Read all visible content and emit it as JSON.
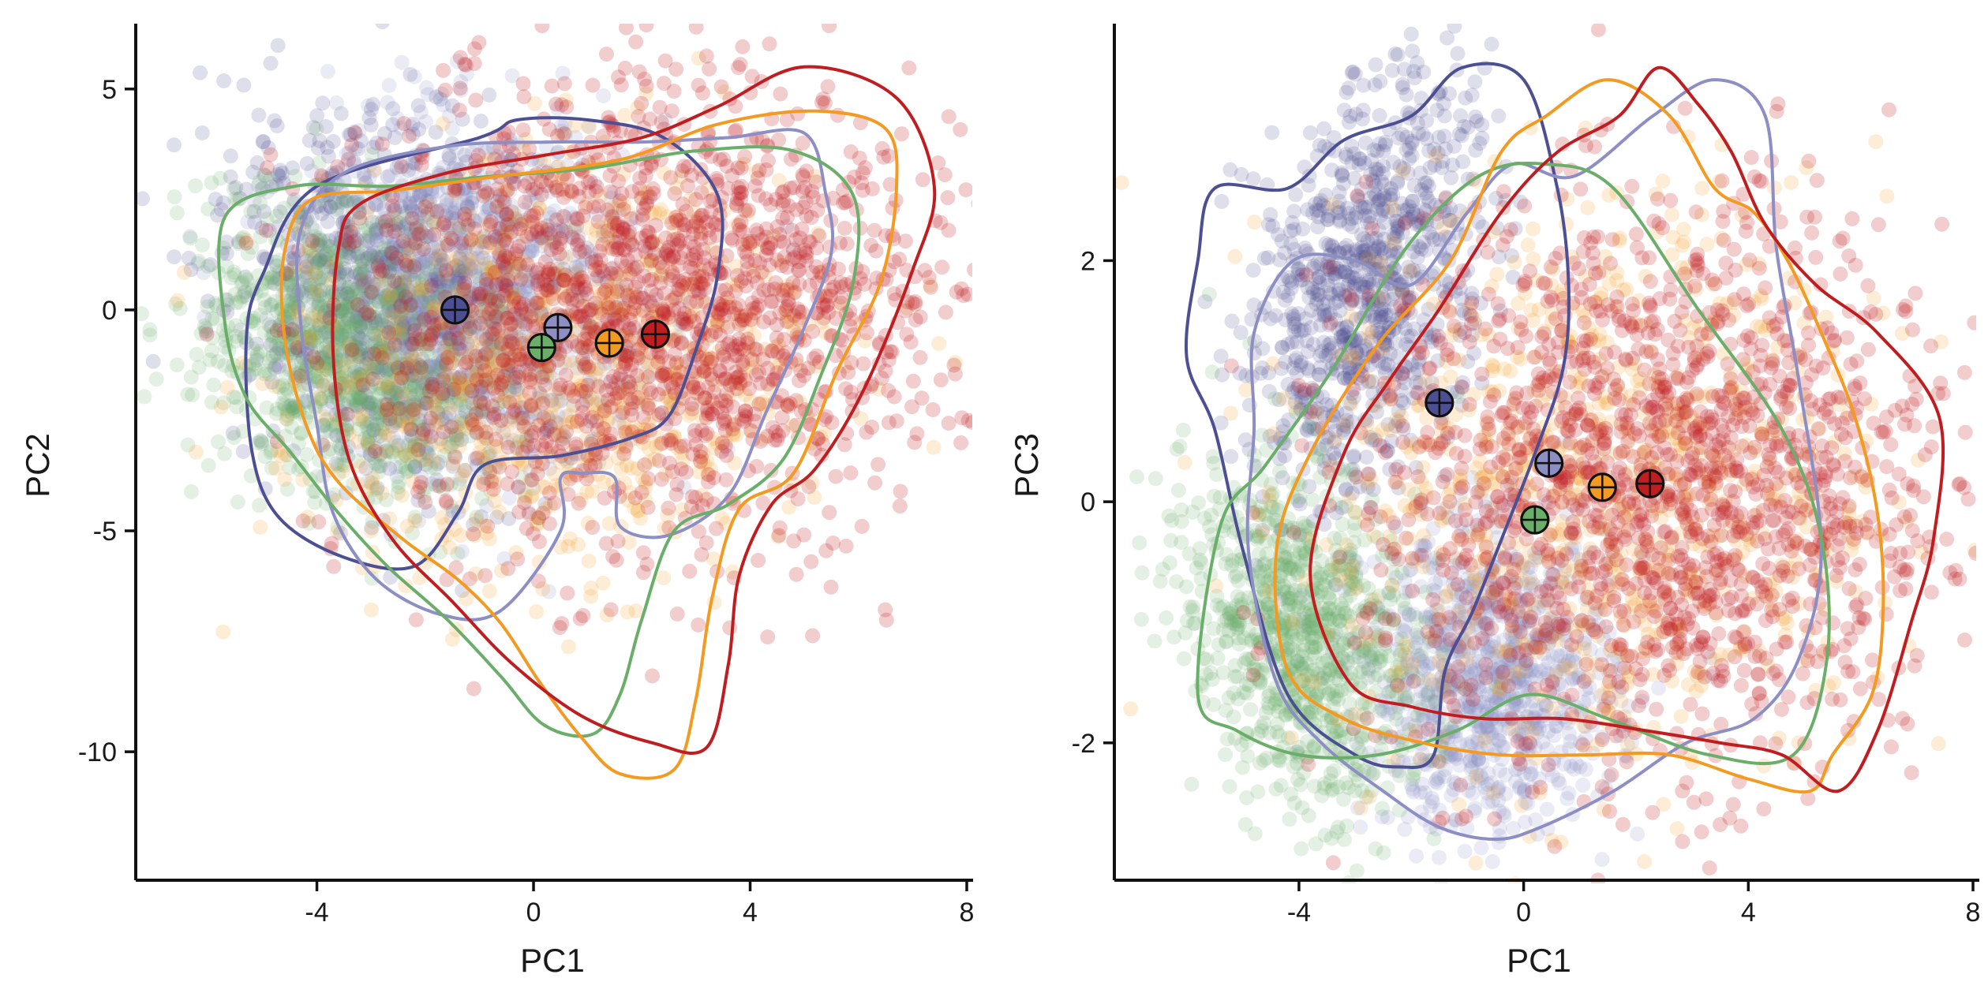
{
  "colors": {
    "navy": "#4c4f92",
    "lavender": "#8c8ec4",
    "green": "#6aae6a",
    "orange": "#f39a22",
    "red": "#c01d20",
    "axis": "#111111"
  },
  "chart_data": [
    {
      "type": "scatter",
      "title": "",
      "xlabel": "PC1",
      "ylabel": "PC2",
      "xlim": [
        -6.5,
        8.0
      ],
      "ylim": [
        -12.8,
        6.3
      ],
      "xticks": [
        -4,
        0,
        4,
        8
      ],
      "xtick_labels": [
        "-4",
        "0",
        "4",
        "8"
      ],
      "yticks": [
        -10,
        -5,
        0,
        5
      ],
      "ytick_labels": [
        "-10",
        "-5",
        "0",
        "5"
      ],
      "grid": false,
      "legend": "none",
      "series": [
        {
          "color_key": "navy",
          "centroid": [
            -1.45,
            0.0
          ],
          "spread": {
            "cx": -2.6,
            "cy": 0.3,
            "rx": 2.6,
            "ry": 3.7,
            "rot": 15
          },
          "contour": [
            [
              -1.0,
              3.9
            ],
            [
              -0.3,
              4.3
            ],
            [
              1.0,
              4.3
            ],
            [
              2.4,
              3.9
            ],
            [
              3.4,
              2.6
            ],
            [
              3.4,
              0.8
            ],
            [
              3.0,
              -0.9
            ],
            [
              2.5,
              -2.4
            ],
            [
              1.8,
              -2.9
            ],
            [
              0.5,
              -3.3
            ],
            [
              -0.9,
              -3.5
            ],
            [
              -1.4,
              -4.6
            ],
            [
              -2.2,
              -5.8
            ],
            [
              -3.5,
              -5.6
            ],
            [
              -4.7,
              -4.7
            ],
            [
              -5.2,
              -3.2
            ],
            [
              -5.3,
              -0.6
            ],
            [
              -5.0,
              0.8
            ],
            [
              -4.0,
              2.8
            ]
          ]
        },
        {
          "color_key": "lavender",
          "centroid": [
            0.45,
            -0.4
          ],
          "spread": {
            "cx": -1.0,
            "cy": 0.2,
            "rx": 3.0,
            "ry": 3.6,
            "rot": 10
          },
          "contour": [
            [
              -3.5,
              3.1
            ],
            [
              -1.6,
              3.7
            ],
            [
              0.3,
              3.8
            ],
            [
              2.0,
              3.8
            ],
            [
              3.6,
              3.9
            ],
            [
              5.0,
              4.0
            ],
            [
              5.4,
              2.6
            ],
            [
              5.5,
              1.3
            ],
            [
              5.0,
              -0.4
            ],
            [
              4.3,
              -2.3
            ],
            [
              3.6,
              -4.2
            ],
            [
              2.5,
              -5.1
            ],
            [
              1.6,
              -4.9
            ],
            [
              1.5,
              -3.8
            ],
            [
              0.9,
              -3.7
            ],
            [
              0.5,
              -3.8
            ],
            [
              0.5,
              -5.0
            ],
            [
              -0.6,
              -6.8
            ],
            [
              -1.7,
              -6.9
            ],
            [
              -2.9,
              -6.1
            ],
            [
              -3.7,
              -4.6
            ],
            [
              -4.0,
              -2.6
            ],
            [
              -4.3,
              -0.3
            ],
            [
              -4.3,
              1.8
            ]
          ]
        },
        {
          "color_key": "green",
          "centroid": [
            0.15,
            -0.85
          ],
          "spread": {
            "cx": -3.6,
            "cy": -1.0,
            "rx": 2.2,
            "ry": 3.2,
            "rot": 25
          },
          "contour": [
            [
              -5.7,
              2.1
            ],
            [
              -4.4,
              2.8
            ],
            [
              -2.7,
              2.8
            ],
            [
              -1.0,
              3.0
            ],
            [
              1.0,
              3.2
            ],
            [
              3.0,
              3.6
            ],
            [
              4.8,
              3.6
            ],
            [
              5.9,
              2.6
            ],
            [
              5.9,
              0.6
            ],
            [
              5.3,
              -1.5
            ],
            [
              4.6,
              -3.4
            ],
            [
              3.6,
              -4.4
            ],
            [
              2.6,
              -5.0
            ],
            [
              2.0,
              -7.0
            ],
            [
              1.6,
              -8.7
            ],
            [
              1.1,
              -9.6
            ],
            [
              0.2,
              -9.4
            ],
            [
              -0.6,
              -8.3
            ],
            [
              -1.6,
              -7.0
            ],
            [
              -2.7,
              -5.8
            ],
            [
              -3.6,
              -4.6
            ],
            [
              -4.5,
              -3.2
            ],
            [
              -5.3,
              -2.0
            ],
            [
              -5.7,
              -0.3
            ]
          ]
        },
        {
          "color_key": "orange",
          "centroid": [
            1.4,
            -0.75
          ],
          "spread": {
            "cx": 0.6,
            "cy": -1.2,
            "rx": 4.4,
            "ry": 4.3,
            "rot": 20
          },
          "contour": [
            [
              -4.6,
              1.3
            ],
            [
              -4.1,
              2.5
            ],
            [
              -2.6,
              2.7
            ],
            [
              -0.8,
              3.0
            ],
            [
              1.6,
              3.4
            ],
            [
              3.4,
              4.2
            ],
            [
              5.2,
              4.5
            ],
            [
              6.5,
              4.1
            ],
            [
              6.7,
              2.7
            ],
            [
              6.4,
              0.6
            ],
            [
              5.6,
              -1.4
            ],
            [
              4.8,
              -3.7
            ],
            [
              3.8,
              -4.5
            ],
            [
              3.3,
              -6.5
            ],
            [
              3.0,
              -8.8
            ],
            [
              2.6,
              -10.4
            ],
            [
              1.6,
              -10.5
            ],
            [
              0.9,
              -9.7
            ],
            [
              0.1,
              -8.4
            ],
            [
              -0.6,
              -7.1
            ],
            [
              -1.4,
              -6.1
            ],
            [
              -2.4,
              -5.2
            ],
            [
              -3.6,
              -3.9
            ],
            [
              -4.2,
              -2.6
            ],
            [
              -4.6,
              -0.6
            ]
          ]
        },
        {
          "color_key": "red",
          "centroid": [
            2.25,
            -0.55
          ],
          "spread": {
            "cx": 2.2,
            "cy": 0.0,
            "rx": 4.9,
            "ry": 4.7,
            "rot": 20
          },
          "contour": [
            [
              -3.6,
              1.4
            ],
            [
              -3.2,
              2.4
            ],
            [
              -1.6,
              3.1
            ],
            [
              0.2,
              3.5
            ],
            [
              2.0,
              3.9
            ],
            [
              3.4,
              4.6
            ],
            [
              5.0,
              5.5
            ],
            [
              6.7,
              4.8
            ],
            [
              7.4,
              2.8
            ],
            [
              7.0,
              0.9
            ],
            [
              6.1,
              -1.8
            ],
            [
              5.2,
              -3.6
            ],
            [
              4.4,
              -4.4
            ],
            [
              3.8,
              -6.0
            ],
            [
              3.6,
              -8.0
            ],
            [
              3.2,
              -9.9
            ],
            [
              2.2,
              -9.8
            ],
            [
              0.9,
              -9.2
            ],
            [
              -0.4,
              -8.0
            ],
            [
              -1.5,
              -6.6
            ],
            [
              -2.6,
              -5.2
            ],
            [
              -3.4,
              -3.4
            ],
            [
              -3.7,
              -1.0
            ]
          ]
        }
      ]
    },
    {
      "type": "scatter",
      "title": "",
      "xlabel": "PC1",
      "ylabel": "PC3",
      "xlim": [
        -6.5,
        8.0
      ],
      "ylim": [
        -3.1,
        3.9
      ],
      "xticks": [
        -4,
        0,
        4,
        8
      ],
      "xtick_labels": [
        "-4",
        "0",
        "4",
        "8"
      ],
      "yticks": [
        -2,
        0,
        2
      ],
      "ytick_labels": [
        "-2",
        "0",
        "2"
      ],
      "grid": false,
      "legend": "none",
      "series": [
        {
          "color_key": "navy",
          "centroid": [
            -1.5,
            0.82
          ],
          "spread": {
            "cx": -2.8,
            "cy": 1.8,
            "rx": 2.1,
            "ry": 1.3,
            "rot": 35
          },
          "contour": [
            [
              -5.5,
              2.6
            ],
            [
              -4.2,
              2.6
            ],
            [
              -3.2,
              3.0
            ],
            [
              -2.0,
              3.2
            ],
            [
              -1.1,
              3.6
            ],
            [
              0.0,
              3.5
            ],
            [
              0.6,
              2.6
            ],
            [
              0.8,
              1.8
            ],
            [
              0.7,
              1.1
            ],
            [
              0.2,
              0.4
            ],
            [
              -0.3,
              -0.2
            ],
            [
              -0.9,
              -0.9
            ],
            [
              -1.4,
              -1.4
            ],
            [
              -1.6,
              -2.1
            ],
            [
              -2.2,
              -2.2
            ],
            [
              -3.0,
              -2.1
            ],
            [
              -4.2,
              -1.6
            ],
            [
              -5.0,
              -0.4
            ],
            [
              -5.5,
              0.6
            ],
            [
              -6.0,
              1.2
            ],
            [
              -5.8,
              2.0
            ]
          ]
        },
        {
          "color_key": "lavender",
          "centroid": [
            0.45,
            0.32
          ],
          "spread": {
            "cx": -0.6,
            "cy": -1.5,
            "rx": 2.0,
            "ry": 1.1,
            "rot": 0
          },
          "contour": [
            [
              -4.8,
              1.4
            ],
            [
              -4.1,
              2.0
            ],
            [
              -3.0,
              2.0
            ],
            [
              -2.0,
              1.8
            ],
            [
              -1.0,
              2.4
            ],
            [
              -0.2,
              2.8
            ],
            [
              0.9,
              2.7
            ],
            [
              2.3,
              3.2
            ],
            [
              3.4,
              3.5
            ],
            [
              4.3,
              3.2
            ],
            [
              4.5,
              2.1
            ],
            [
              4.9,
              1.0
            ],
            [
              5.3,
              -0.4
            ],
            [
              4.9,
              -1.3
            ],
            [
              4.1,
              -1.8
            ],
            [
              2.9,
              -2.0
            ],
            [
              1.6,
              -2.4
            ],
            [
              0.3,
              -2.7
            ],
            [
              -0.5,
              -2.8
            ],
            [
              -1.5,
              -2.7
            ],
            [
              -2.5,
              -2.4
            ],
            [
              -3.6,
              -2.0
            ],
            [
              -4.4,
              -1.5
            ],
            [
              -4.9,
              -0.4
            ],
            [
              -4.8,
              0.6
            ]
          ]
        },
        {
          "color_key": "green",
          "centroid": [
            0.2,
            -0.15
          ],
          "spread": {
            "cx": -4.0,
            "cy": -1.1,
            "rx": 1.9,
            "ry": 1.2,
            "rot": -20
          },
          "contour": [
            [
              -5.4,
              -0.2
            ],
            [
              -4.6,
              0.3
            ],
            [
              -3.4,
              1.1
            ],
            [
              -2.1,
              2.1
            ],
            [
              -0.8,
              2.7
            ],
            [
              0.4,
              2.8
            ],
            [
              1.6,
              2.6
            ],
            [
              3.1,
              1.6
            ],
            [
              4.6,
              0.6
            ],
            [
              5.3,
              -0.3
            ],
            [
              5.4,
              -1.3
            ],
            [
              4.8,
              -2.1
            ],
            [
              3.3,
              -2.1
            ],
            [
              1.5,
              -1.8
            ],
            [
              0.1,
              -1.6
            ],
            [
              -1.2,
              -1.9
            ],
            [
              -2.6,
              -2.1
            ],
            [
              -4.0,
              -2.1
            ],
            [
              -5.1,
              -1.9
            ],
            [
              -5.8,
              -1.6
            ]
          ]
        },
        {
          "color_key": "orange",
          "centroid": [
            1.4,
            0.12
          ],
          "spread": {
            "cx": 1.4,
            "cy": 0.1,
            "rx": 4.6,
            "ry": 2.2,
            "rot": 0
          },
          "contour": [
            [
              -3.8,
              0.4
            ],
            [
              -2.6,
              1.3
            ],
            [
              -1.3,
              2.0
            ],
            [
              -0.4,
              2.9
            ],
            [
              0.4,
              3.2
            ],
            [
              1.5,
              3.5
            ],
            [
              2.6,
              3.2
            ],
            [
              3.4,
              2.6
            ],
            [
              4.1,
              2.4
            ],
            [
              4.7,
              2.0
            ],
            [
              5.3,
              1.4
            ],
            [
              5.9,
              0.7
            ],
            [
              6.3,
              -0.1
            ],
            [
              6.4,
              -0.9
            ],
            [
              6.2,
              -1.6
            ],
            [
              5.5,
              -2.1
            ],
            [
              5.1,
              -2.4
            ],
            [
              4.0,
              -2.3
            ],
            [
              2.6,
              -2.1
            ],
            [
              1.1,
              -2.1
            ],
            [
              -0.4,
              -2.1
            ],
            [
              -1.8,
              -2.0
            ],
            [
              -3.2,
              -1.8
            ],
            [
              -4.2,
              -1.4
            ],
            [
              -4.4,
              -0.4
            ]
          ]
        },
        {
          "color_key": "red",
          "centroid": [
            2.25,
            0.15
          ],
          "spread": {
            "cx": 2.4,
            "cy": 0.1,
            "rx": 4.7,
            "ry": 2.1,
            "rot": 0
          },
          "contour": [
            [
              -3.8,
              -0.6
            ],
            [
              -3.2,
              0.4
            ],
            [
              -2.4,
              1.0
            ],
            [
              -1.5,
              1.6
            ],
            [
              -0.4,
              2.4
            ],
            [
              0.6,
              2.9
            ],
            [
              1.7,
              3.2
            ],
            [
              2.4,
              3.6
            ],
            [
              3.1,
              3.3
            ],
            [
              3.7,
              2.9
            ],
            [
              4.3,
              2.3
            ],
            [
              5.2,
              1.8
            ],
            [
              6.3,
              1.4
            ],
            [
              7.4,
              0.7
            ],
            [
              7.3,
              -0.3
            ],
            [
              6.9,
              -1.0
            ],
            [
              6.3,
              -1.9
            ],
            [
              5.6,
              -2.4
            ],
            [
              4.6,
              -2.1
            ],
            [
              3.5,
              -2.0
            ],
            [
              2.2,
              -1.9
            ],
            [
              0.7,
              -1.8
            ],
            [
              -0.7,
              -1.8
            ],
            [
              -2.0,
              -1.7
            ],
            [
              -3.1,
              -1.5
            ]
          ]
        }
      ]
    }
  ]
}
